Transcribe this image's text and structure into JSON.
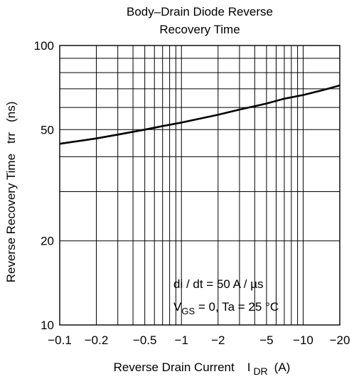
{
  "chart_data": {
    "type": "line",
    "title_lines": [
      "Body–Drain Diode Reverse",
      "Recovery Time"
    ],
    "xlabel": "Reverse Drain Current",
    "xlabel_symbol": "I",
    "xlabel_subscript": "DR",
    "xlabel_unit": "(A)",
    "ylabel": "Reverse Recovery Time",
    "ylabel_symbol": "trr",
    "ylabel_unit": "(ns)",
    "x_scale": "log",
    "y_scale": "log",
    "xlim": [
      -0.1,
      -20
    ],
    "ylim": [
      10,
      100
    ],
    "x_ticks": [
      -0.1,
      -0.2,
      -0.5,
      -1,
      -2,
      -5,
      -10,
      -20
    ],
    "x_tick_labels": [
      "−0.1",
      "−0.2",
      "−0.5",
      "−1",
      "−2",
      "−5",
      "−10",
      "−20"
    ],
    "y_ticks": [
      10,
      20,
      50,
      100
    ],
    "y_tick_labels": [
      "10",
      "20",
      "50",
      "100"
    ],
    "grid": true,
    "annotations": {
      "line1": "di / dt = 50 A / µs",
      "line2_v": "V",
      "line2_sub": "GS",
      "line2_rest": " = 0, Ta = 25 °C"
    },
    "series": [
      {
        "x": [
          -0.1,
          -0.2,
          -0.3,
          -0.5,
          -0.7,
          -1,
          -2,
          -3,
          -5,
          -7,
          -10,
          -15,
          -20
        ],
        "y": [
          44.5,
          46.5,
          48,
          50,
          51.5,
          53,
          56.5,
          59,
          62,
          64.5,
          66.5,
          69.5,
          72
        ]
      }
    ]
  }
}
